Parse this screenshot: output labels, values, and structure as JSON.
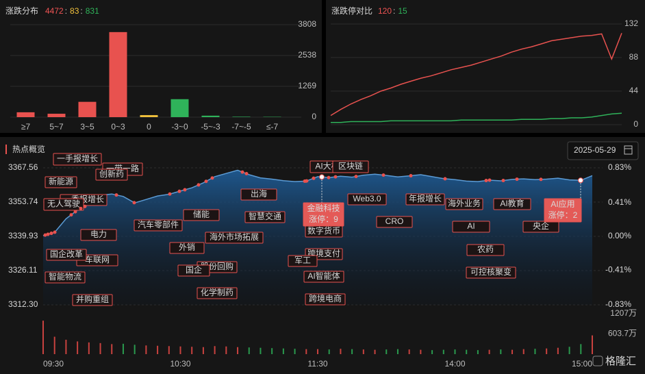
{
  "chart_data": [
    {
      "type": "bar",
      "title": "涨跌分布",
      "separator": ":",
      "summary": [
        {
          "value": 4472,
          "color": "#f05454"
        },
        {
          "value": 83,
          "color": "#f0c03c"
        },
        {
          "value": 831,
          "color": "#2fb35a"
        }
      ],
      "categories": [
        "≥7",
        "5~7",
        "3~5",
        "0~3",
        "0",
        "-3~0",
        "-5~-3",
        "-7~-5",
        "≤-7"
      ],
      "values": [
        200,
        140,
        630,
        3502,
        83,
        740,
        60,
        18,
        13
      ],
      "colors": [
        "#e8524f",
        "#e8524f",
        "#e8524f",
        "#e8524f",
        "#f0c03c",
        "#2fb35a",
        "#2fb35a",
        "#2fb35a",
        "#2fb35a"
      ],
      "ylim": [
        0,
        3808
      ],
      "yticks": [
        0,
        1269,
        2538,
        3808
      ],
      "grid": true
    },
    {
      "type": "line",
      "title": "涨跌停对比",
      "separator": ":",
      "summary": [
        {
          "value": 120,
          "color": "#f05454"
        },
        {
          "value": 15,
          "color": "#2fb35a"
        }
      ],
      "series": [
        {
          "color": "#e8524f",
          "values": [
            12,
            20,
            27,
            33,
            38,
            44,
            48,
            53,
            57,
            61,
            64,
            68,
            72,
            75,
            78,
            82,
            86,
            90,
            95,
            99,
            102,
            106,
            110,
            112,
            114,
            116,
            117,
            119,
            86,
            120
          ]
        },
        {
          "color": "#2fb35a",
          "values": [
            3,
            3,
            4,
            4,
            4,
            4,
            5,
            5,
            5,
            5,
            5,
            5,
            5,
            6,
            6,
            6,
            6,
            6,
            6,
            7,
            7,
            7,
            8,
            8,
            9,
            9,
            10,
            12,
            14,
            15
          ]
        }
      ],
      "ylim": [
        0,
        132
      ],
      "yticks": [
        0,
        44,
        88,
        132
      ],
      "grid": true
    },
    {
      "type": "area",
      "title": "热点概览",
      "date": "2025-05-29",
      "categories": [
        "09:30",
        null,
        null,
        null,
        null,
        null,
        null,
        null,
        null,
        null,
        null,
        null,
        "10:30",
        null,
        null,
        null,
        null,
        null,
        null,
        null,
        null,
        null,
        null,
        null,
        "11:30",
        null,
        null,
        null,
        null,
        null,
        null,
        null,
        null,
        null,
        null,
        null,
        "14:00",
        null,
        null,
        null,
        null,
        null,
        null,
        null,
        null,
        null,
        null,
        null,
        "15:00"
      ],
      "values": [
        3340.2,
        3341.5,
        3347.0,
        3350.5,
        3352.8,
        3356.5,
        3357.0,
        3356.0,
        3353.4,
        3354.8,
        3356.2,
        3356.9,
        3358.2,
        3359.5,
        3361.5,
        3364.0,
        3365.3,
        3366.6,
        3364.8,
        3363.5,
        3363.0,
        3362.4,
        3362.0,
        3362.2,
        3364.0,
        3363.6,
        3364.2,
        3363.8,
        3364.6,
        3365.0,
        3364.5,
        3363.9,
        3364.3,
        3364.8,
        3364.0,
        3363.2,
        3362.8,
        3362.2,
        3362.0,
        3362.6,
        3362.3,
        3362.9,
        3363.1,
        3362.8,
        3363.0,
        3363.4,
        3362.7,
        3362.5,
        3364.4
      ],
      "color": "#5b9bd5",
      "ylim": [
        {
          "value": 3312.3,
          "label": "3312.30"
        },
        3367.56
      ],
      "yticks": [
        3367.56,
        3353.74,
        3339.93,
        3326.11,
        {
          "value": 3312.3,
          "label": "3312.30"
        }
      ],
      "y2lim": [
        -0.83,
        0.83
      ],
      "y2ticks": [
        {
          "value": 0.83,
          "label": "0.83%"
        },
        {
          "value": 0.41,
          "label": "0.41%"
        },
        {
          "value": 0,
          "label": "0.00%"
        },
        {
          "value": -0.41,
          "label": "-0.41%"
        },
        {
          "value": -0.83,
          "label": "-0.83%"
        }
      ],
      "volume": {
        "values": [
          1000,
          520,
          430,
          380,
          350,
          330,
          300,
          310,
          280,
          260,
          250,
          240,
          230,
          220,
          210,
          240,
          230,
          210,
          200,
          190,
          180,
          170,
          160,
          150,
          150,
          140,
          160,
          150,
          140,
          130,
          140,
          150,
          140,
          130,
          120,
          130,
          140,
          130,
          120,
          130,
          140,
          130,
          150,
          160,
          170,
          190,
          220,
          300,
          560
        ],
        "ylim": [
          0,
          1207
        ],
        "yticks": [
          {
            "value": 1207,
            "label": "1207万"
          },
          {
            "value": 603.7,
            "label": "603.7万"
          }
        ]
      },
      "annotations": [
        {
          "text": "一带一路"
        },
        {
          "text": "一手报增长"
        },
        {
          "text": "新能源"
        },
        {
          "text": "创新药"
        },
        {
          "text": "一季报增长"
        },
        {
          "text": "无人驾驶"
        },
        {
          "text": "电力"
        },
        {
          "text": "车联网"
        },
        {
          "text": "国企改革"
        },
        {
          "text": "智能物流"
        },
        {
          "text": "并购重组"
        },
        {
          "text": "汽车零部件"
        },
        {
          "text": "储能"
        },
        {
          "text": "外销"
        },
        {
          "text": "股份回购"
        },
        {
          "text": "国企"
        },
        {
          "text": "化学制药"
        },
        {
          "text": "海外市场拓展"
        },
        {
          "text": "出海"
        },
        {
          "text": "智慧交通"
        },
        {
          "text": "AI大模型"
        },
        {
          "text": "区块链"
        },
        {
          "text": "Web3.0"
        },
        {
          "text": "金融科技",
          "sub": "涨停：9",
          "highlight": true
        },
        {
          "text": "数字货币"
        },
        {
          "text": "跨境支付"
        },
        {
          "text": "军工"
        },
        {
          "text": "AI智能体"
        },
        {
          "text": "跨境电商"
        },
        {
          "text": "CRO"
        },
        {
          "text": "年报增长"
        },
        {
          "text": "海外业务"
        },
        {
          "text": "AI"
        },
        {
          "text": "农药"
        },
        {
          "text": "可控核聚变"
        },
        {
          "text": "AI教育"
        },
        {
          "text": "央企"
        },
        {
          "text": "AI应用",
          "sub": "涨停：2",
          "highlight": true
        }
      ]
    }
  ],
  "watermark": "格隆汇"
}
